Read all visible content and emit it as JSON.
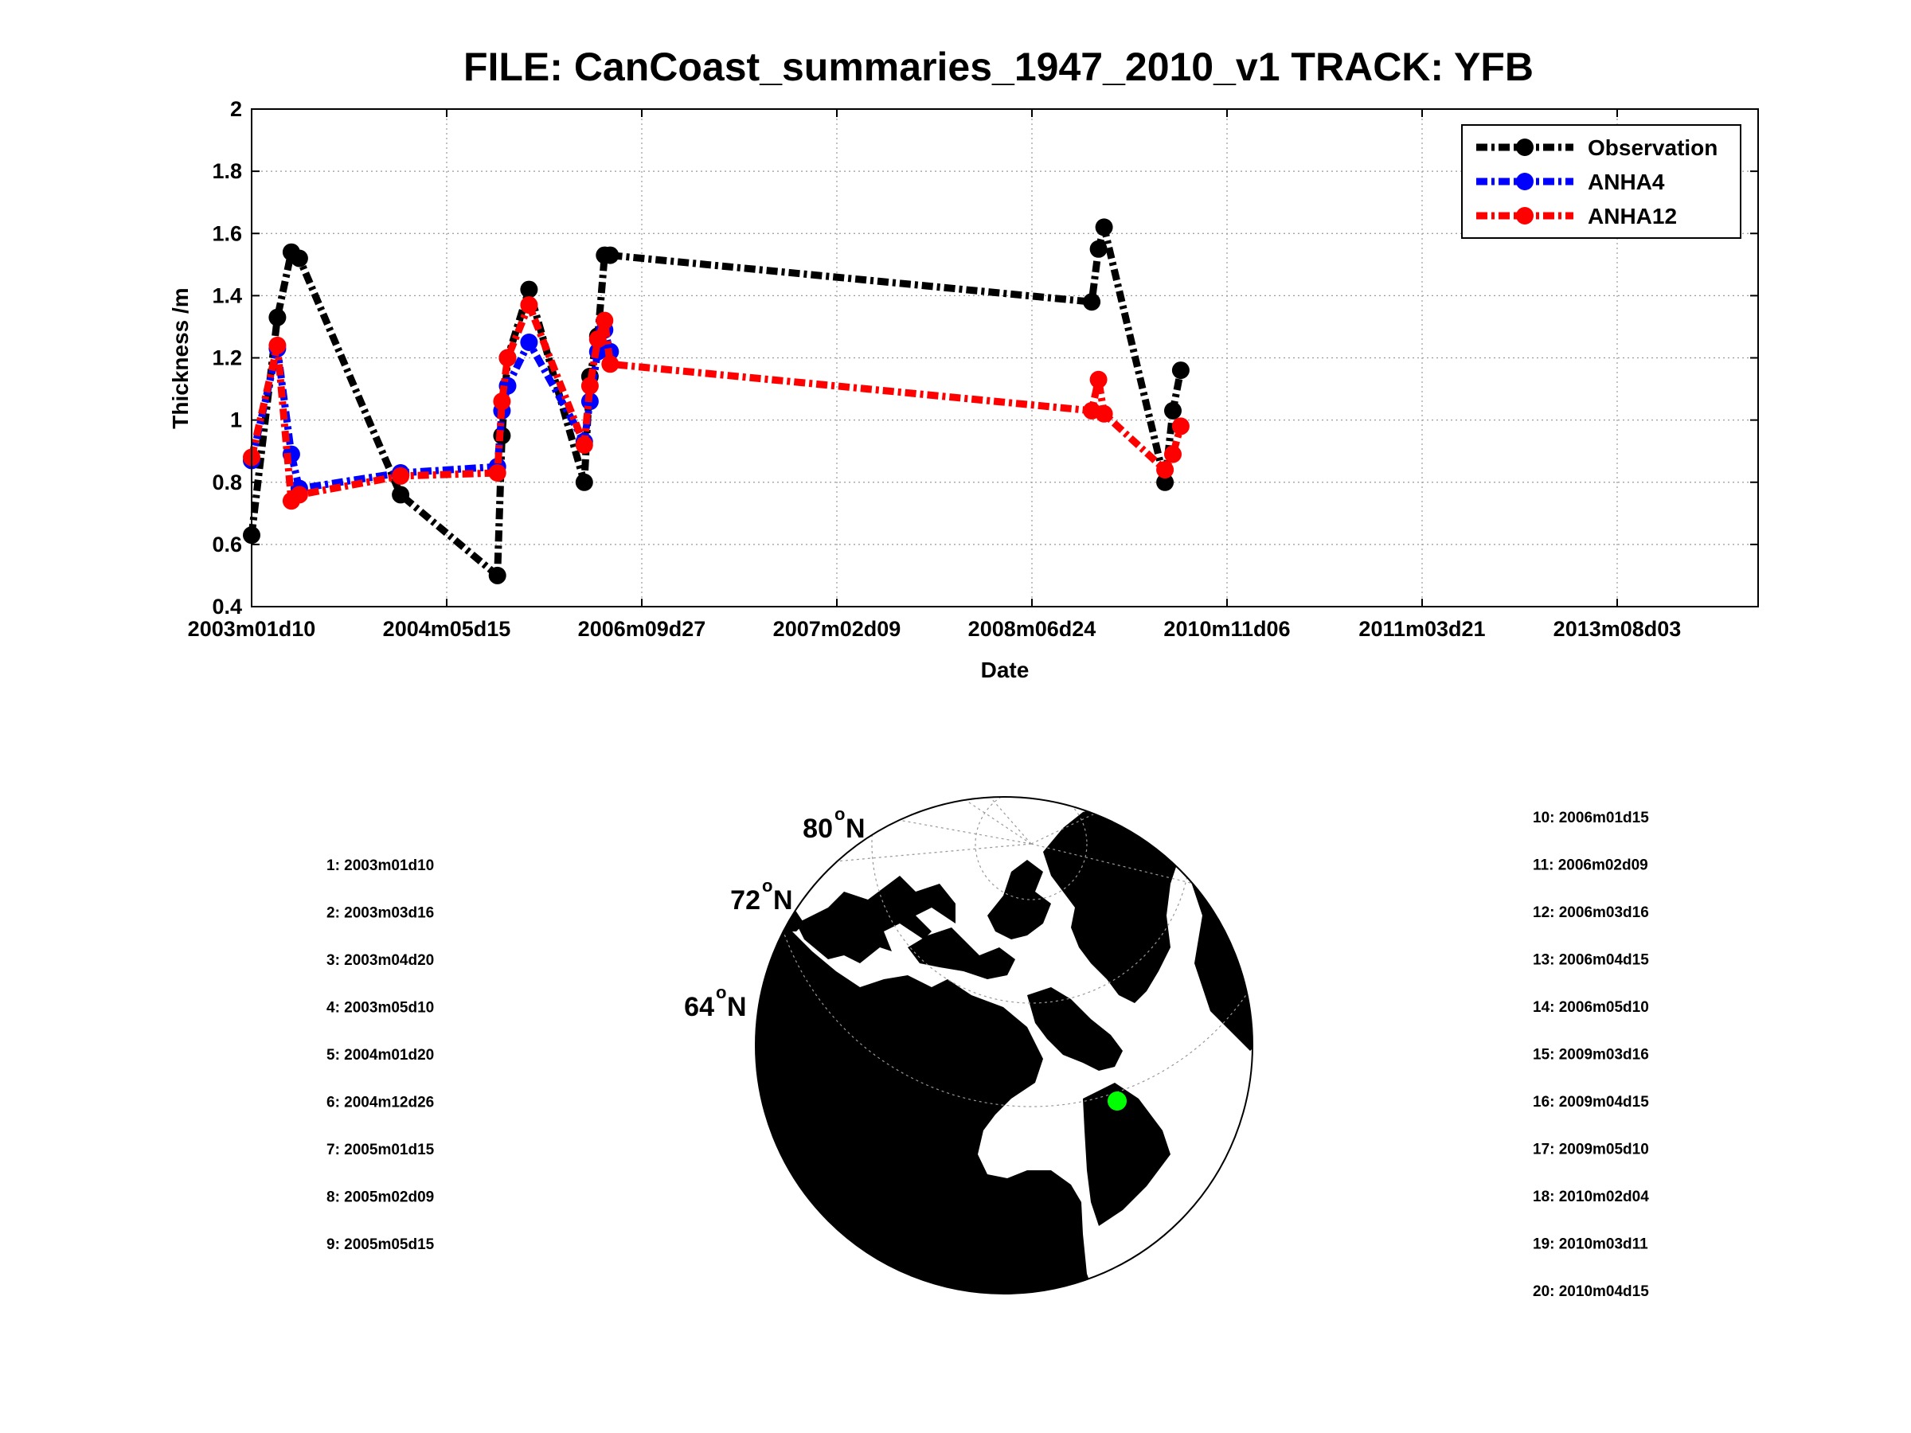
{
  "chart_data": [
    {
      "type": "line",
      "title": "FILE: CanCoast_summaries_1947_2010_v1 TRACK: YFB",
      "xlabel": "Date",
      "ylabel": "Thickness /m",
      "ylim": [
        0.4,
        2
      ],
      "yticks": [
        "0.4",
        "0.6",
        "0.8",
        "1",
        "1.2",
        "1.4",
        "1.6",
        "1.8",
        "2"
      ],
      "xticks": [
        "2003m01d10",
        "2004m05d15",
        "2006m09d27",
        "2007m02d09",
        "2008m06d24",
        "2010m11d06",
        "2011m03d21",
        "2013m08d03"
      ],
      "grid": true,
      "legend_position": "top-right",
      "x": [
        "2003m01d10",
        "2003m03d16",
        "2003m04d20",
        "2003m05d10",
        "2004m01d20",
        "2004m12d26",
        "2005m01d15",
        "2005m02d09",
        "2005m05d15",
        "2006m01d15",
        "2006m02d09",
        "2006m03d16",
        "2006m04d15",
        "2006m05d10",
        "2009m03d16",
        "2009m04d15",
        "2009m05d10",
        "2010m02d04",
        "2010m03d11",
        "2010m04d15"
      ],
      "series": [
        {
          "name": "Observation",
          "color": "#000000",
          "values": [
            0.63,
            1.33,
            1.54,
            1.52,
            0.76,
            0.5,
            0.95,
            1.2,
            1.42,
            0.8,
            1.14,
            1.27,
            1.53,
            1.53,
            1.38,
            1.55,
            1.62,
            0.8,
            1.03,
            1.16
          ]
        },
        {
          "name": "ANHA4",
          "color": "#0000ff",
          "values": [
            0.87,
            1.23,
            0.89,
            0.78,
            0.83,
            0.85,
            1.03,
            1.11,
            1.25,
            0.93,
            1.06,
            1.22,
            1.29,
            1.22,
            null,
            null,
            null,
            null,
            null,
            null
          ]
        },
        {
          "name": "ANHA12",
          "color": "#ff0000",
          "values": [
            0.88,
            1.24,
            0.74,
            0.76,
            0.82,
            0.83,
            1.06,
            1.2,
            1.37,
            0.92,
            1.11,
            1.26,
            1.32,
            1.18,
            1.03,
            1.13,
            1.02,
            0.84,
            0.89,
            0.98
          ]
        }
      ]
    }
  ],
  "map": {
    "lat_labels": [
      "80",
      "72",
      "64"
    ],
    "lat_suffix": "N",
    "lat_degree_mark": "o",
    "marker_color": "#00ff00"
  },
  "date_list_left": [
    "1: 2003m01d10",
    "2: 2003m03d16",
    "3: 2003m04d20",
    "4: 2003m05d10",
    "5: 2004m01d20",
    "6: 2004m12d26",
    "7: 2005m01d15",
    "8: 2005m02d09",
    "9: 2005m05d15"
  ],
  "date_list_right": [
    "10: 2006m01d15",
    "11: 2006m02d09",
    "12: 2006m03d16",
    "13: 2006m04d15",
    "14: 2006m05d10",
    "15: 2009m03d16",
    "16: 2009m04d15",
    "17: 2009m05d10",
    "18: 2010m02d04",
    "19: 2010m03d11",
    "20: 2010m04d15"
  ]
}
